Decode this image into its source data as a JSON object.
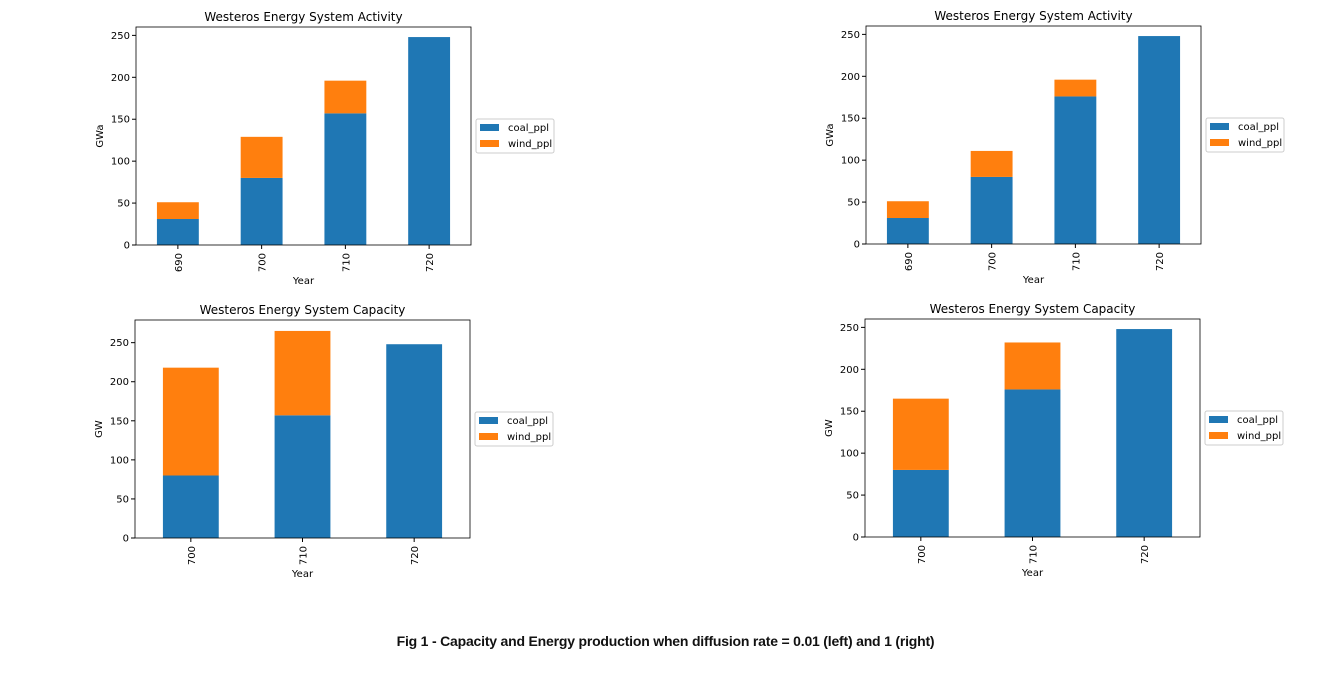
{
  "caption": "Fig 1 - Capacity and Energy production when diffusion rate = 0.01 (left) and 1 (right)",
  "colors": {
    "coal_ppl": "#1f77b4",
    "wind_ppl": "#ff7f0e"
  },
  "chart_data": [
    {
      "type": "bar",
      "stacked": true,
      "title": "Westeros Energy System Activity",
      "xlabel": "Year",
      "ylabel": "GWa",
      "categories": [
        "690",
        "700",
        "710",
        "720"
      ],
      "series": [
        {
          "name": "coal_ppl",
          "values": [
            31,
            80,
            157,
            248
          ]
        },
        {
          "name": "wind_ppl",
          "values": [
            20,
            49,
            39,
            0
          ]
        }
      ],
      "ylim": [
        0,
        260
      ],
      "yticks": [
        0,
        50,
        100,
        150,
        200,
        250
      ],
      "legend": "right"
    },
    {
      "type": "bar",
      "stacked": true,
      "title": "Westeros Energy System Activity",
      "xlabel": "Year",
      "ylabel": "GWa",
      "categories": [
        "690",
        "700",
        "710",
        "720"
      ],
      "series": [
        {
          "name": "coal_ppl",
          "values": [
            31,
            80,
            176,
            248
          ]
        },
        {
          "name": "wind_ppl",
          "values": [
            20,
            31,
            20,
            0
          ]
        }
      ],
      "ylim": [
        0,
        260
      ],
      "yticks": [
        0,
        50,
        100,
        150,
        200,
        250
      ],
      "legend": "right"
    },
    {
      "type": "bar",
      "stacked": true,
      "title": "Westeros Energy System Capacity",
      "xlabel": "Year",
      "ylabel": "GW",
      "categories": [
        "700",
        "710",
        "720"
      ],
      "series": [
        {
          "name": "coal_ppl",
          "values": [
            80,
            157,
            248
          ]
        },
        {
          "name": "wind_ppl",
          "values": [
            138,
            108,
            0
          ]
        }
      ],
      "ylim": [
        0,
        279
      ],
      "yticks": [
        0,
        50,
        100,
        150,
        200,
        250
      ],
      "legend": "right"
    },
    {
      "type": "bar",
      "stacked": true,
      "title": "Westeros Energy System Capacity",
      "xlabel": "Year",
      "ylabel": "GW",
      "categories": [
        "700",
        "710",
        "720"
      ],
      "series": [
        {
          "name": "coal_ppl",
          "values": [
            80,
            176,
            248
          ]
        },
        {
          "name": "wind_ppl",
          "values": [
            85,
            56,
            0
          ]
        }
      ],
      "ylim": [
        0,
        260
      ],
      "yticks": [
        0,
        50,
        100,
        150,
        200,
        250
      ],
      "legend": "right"
    }
  ]
}
